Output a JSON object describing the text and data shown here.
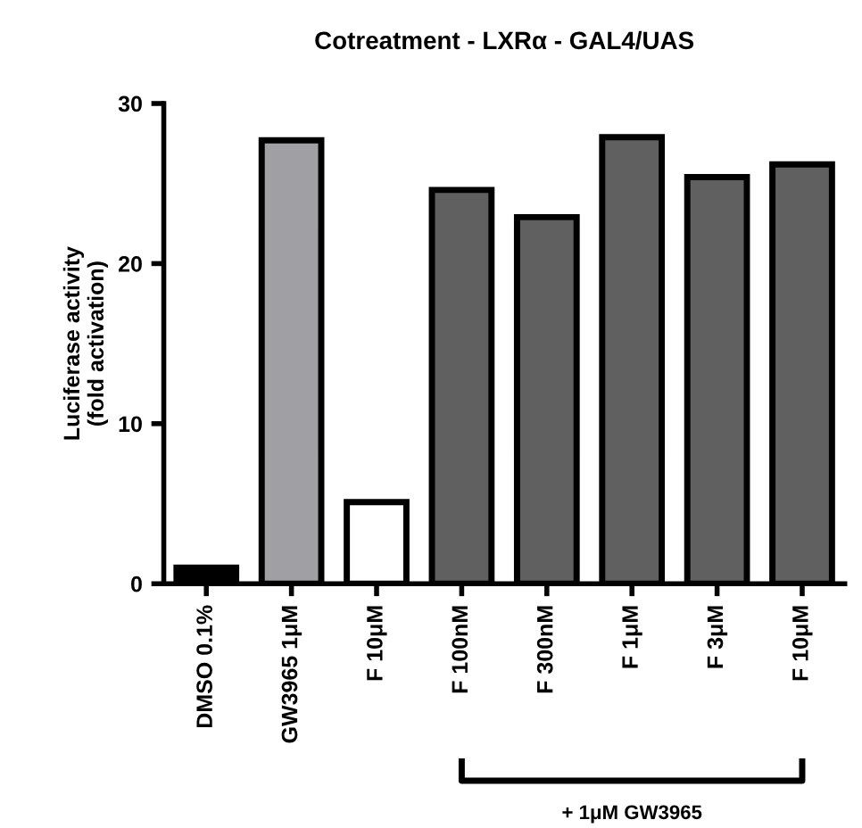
{
  "chart_data": {
    "type": "bar",
    "title": "Cotreatment - LXRα - GAL4/UAS",
    "ylabel": "Luciferase activity\n(fold activation)",
    "categories": [
      "DMSO 0.1%",
      "GW3965 1μM",
      "F 10μM",
      "F 100nM",
      "F 300nM",
      "F 1μM",
      "F 3μM",
      "F 10μM"
    ],
    "values": [
      1.0,
      27.7,
      5.1,
      24.6,
      22.9,
      27.9,
      25.4,
      26.2
    ],
    "colors": [
      "#000000",
      "#a0a0a4",
      "#ffffff",
      "#606060",
      "#606060",
      "#606060",
      "#606060",
      "#606060"
    ],
    "ylim": [
      0,
      30
    ],
    "yticks": [
      0,
      10,
      20,
      30
    ],
    "grid": false,
    "legend": false,
    "annotations": [
      "+ 1μM GW3965"
    ]
  }
}
